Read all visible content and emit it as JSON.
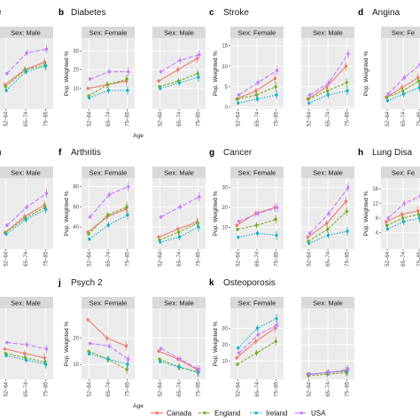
{
  "legend": [
    {
      "name": "Canada",
      "color": "#f07c6e"
    },
    {
      "name": "England",
      "color": "#7aad2b"
    },
    {
      "name": "Ireland",
      "color": "#17b5c4"
    },
    {
      "name": "USA",
      "color": "#c77cff"
    }
  ],
  "chart_data": [
    {
      "id": "a",
      "type": "line",
      "label": "",
      "title": "e",
      "categories": [
        "52–64",
        "65–74",
        "75–85"
      ],
      "ylabel": "",
      "xlabel": "",
      "ylim": [
        0,
        70
      ],
      "yticks": [],
      "facets": [
        {
          "strip": "Sex: Male",
          "series": [
            {
              "name": "Canada",
              "values": [
                24,
                40,
                48
              ]
            },
            {
              "name": "England",
              "values": [
                22,
                40,
                45
              ]
            },
            {
              "name": "Ireland",
              "values": [
                18,
                38,
                44
              ]
            },
            {
              "name": "USA",
              "values": [
                36,
                58,
                62
              ]
            }
          ]
        }
      ]
    },
    {
      "id": "b",
      "type": "line",
      "label": "b",
      "title": "Diabetes",
      "categories": [
        "52–64",
        "65–74",
        "75–85"
      ],
      "ylabel": "Pop. Weighted %",
      "xlabel": "Age",
      "ylim": [
        0,
        35
      ],
      "yticks": [
        10,
        20,
        30
      ],
      "facets": [
        {
          "strip": "Sex: Female",
          "series": [
            {
              "name": "Canada",
              "values": [
                10,
                12,
                14
              ]
            },
            {
              "name": "England",
              "values": [
                6,
                12,
                15
              ]
            },
            {
              "name": "Ireland",
              "values": [
                5,
                9,
                9
              ]
            },
            {
              "name": "USA",
              "values": [
                15,
                19,
                19
              ]
            }
          ]
        },
        {
          "strip": "Sex: Male",
          "series": [
            {
              "name": "Canada",
              "values": [
                14,
                20,
                26
              ]
            },
            {
              "name": "England",
              "values": [
                11,
                14,
                18
              ]
            },
            {
              "name": "Ireland",
              "values": [
                10,
                13,
                16
              ]
            },
            {
              "name": "USA",
              "values": [
                19,
                25,
                28
              ]
            }
          ]
        }
      ]
    },
    {
      "id": "c",
      "type": "line",
      "label": "c",
      "title": "Stroke",
      "categories": [
        "52–64",
        "65–74",
        "75–85"
      ],
      "ylabel": "Pop. Weighted %",
      "xlabel": "",
      "ylim": [
        0,
        16
      ],
      "yticks": [
        0,
        5,
        10,
        15
      ],
      "facets": [
        {
          "strip": "Sex: Female",
          "series": [
            {
              "name": "Canada",
              "values": [
                2,
                4,
                7
              ]
            },
            {
              "name": "England",
              "values": [
                2,
                3,
                5
              ]
            },
            {
              "name": "Ireland",
              "values": [
                1,
                2,
                3
              ]
            },
            {
              "name": "USA",
              "values": [
                3,
                6,
                9
              ]
            }
          ]
        },
        {
          "strip": "Sex: Male",
          "series": [
            {
              "name": "Canada",
              "values": [
                2,
                5,
                10
              ]
            },
            {
              "name": "England",
              "values": [
                2,
                4,
                6
              ]
            },
            {
              "name": "Ireland",
              "values": [
                1,
                3,
                4
              ]
            },
            {
              "name": "USA",
              "values": [
                3,
                6,
                13
              ]
            }
          ]
        }
      ]
    },
    {
      "id": "d",
      "type": "line",
      "label": "d",
      "title": "Angina",
      "categories": [
        "52–64",
        "65–74",
        "75–85"
      ],
      "ylabel": "Pop. Weighted %",
      "xlabel": "",
      "ylim": [
        0,
        20
      ],
      "yticks": [],
      "facets": [
        {
          "strip": "Sex: Fe",
          "series": [
            {
              "name": "Canada",
              "values": [
                3,
                6,
                9
              ]
            },
            {
              "name": "England",
              "values": [
                3,
                5,
                8
              ]
            },
            {
              "name": "Ireland",
              "values": [
                2,
                4,
                6
              ]
            },
            {
              "name": "USA",
              "values": [
                4,
                9,
                13
              ]
            }
          ]
        }
      ]
    },
    {
      "id": "e",
      "type": "line",
      "label": "",
      "title": "n",
      "categories": [
        "52–64",
        "65–74",
        "75–85"
      ],
      "ylabel": "",
      "xlabel": "",
      "ylim": [
        0,
        90
      ],
      "yticks": [],
      "facets": [
        {
          "strip": "Sex: Male",
          "series": [
            {
              "name": "Canada",
              "values": [
                20,
                42,
                58
              ]
            },
            {
              "name": "England",
              "values": [
                20,
                40,
                55
              ]
            },
            {
              "name": "Ireland",
              "values": [
                18,
                38,
                52
              ]
            },
            {
              "name": "USA",
              "values": [
                30,
                55,
                74
              ]
            }
          ]
        }
      ]
    },
    {
      "id": "f",
      "type": "line",
      "label": "f",
      "title": "Arthritis",
      "categories": [
        "52–64",
        "65–74",
        "75–85"
      ],
      "ylabel": "Pop. Weighted %",
      "xlabel": "",
      "ylim": [
        20,
        85
      ],
      "yticks": [
        40,
        60,
        80
      ],
      "facets": [
        {
          "strip": "Sex: Female",
          "series": [
            {
              "name": "Canada",
              "values": [
                35,
                50,
                58
              ]
            },
            {
              "name": "England",
              "values": [
                33,
                52,
                60
              ]
            },
            {
              "name": "Ireland",
              "values": [
                28,
                42,
                52
              ]
            },
            {
              "name": "USA",
              "values": [
                50,
                72,
                80
              ]
            }
          ]
        },
        {
          "strip": "Sex: Male",
          "series": [
            {
              "name": "Canada",
              "values": [
                30,
                38,
                45
              ]
            },
            {
              "name": "England",
              "values": [
                27,
                35,
                44
              ]
            },
            {
              "name": "Ireland",
              "values": [
                25,
                30,
                40
              ]
            },
            {
              "name": "USA",
              "values": [
                50,
                60,
                70
              ]
            }
          ]
        }
      ]
    },
    {
      "id": "g",
      "type": "line",
      "label": "g",
      "title": "Cancer",
      "categories": [
        "52–64",
        "65–74",
        "75–85"
      ],
      "ylabel": "Pop. Weighted %",
      "xlabel": "",
      "ylim": [
        0,
        33
      ],
      "yticks": [
        10,
        20,
        30
      ],
      "facets": [
        {
          "strip": "Sex: Female",
          "series": [
            {
              "name": "Canada",
              "values": [
                11,
                17,
                20
              ]
            },
            {
              "name": "England",
              "values": [
                9,
                11,
                14
              ]
            },
            {
              "name": "Ireland",
              "values": [
                5,
                7,
                6
              ]
            },
            {
              "name": "USA",
              "values": [
                13,
                17,
                20
              ]
            }
          ]
        },
        {
          "strip": "Sex: Male",
          "series": [
            {
              "name": "Canada",
              "values": [
                5,
                12,
                23
              ]
            },
            {
              "name": "England",
              "values": [
                3,
                9,
                18
              ]
            },
            {
              "name": "Ireland",
              "values": [
                2,
                6,
                8
              ]
            },
            {
              "name": "USA",
              "values": [
                7,
                17,
                30
              ]
            }
          ]
        }
      ]
    },
    {
      "id": "h",
      "type": "line",
      "label": "h",
      "title": "Lung Disa",
      "categories": [
        "52–64",
        "65–74",
        "75–85"
      ],
      "ylabel": "Pop. Weighted %",
      "xlabel": "",
      "ylim": [
        0,
        18
      ],
      "yticks": [
        4,
        8,
        12,
        16
      ],
      "facets": [
        {
          "strip": "Sex: Fe",
          "series": [
            {
              "name": "Canada",
              "values": [
                7,
                9,
                10
              ]
            },
            {
              "name": "England",
              "values": [
                6,
                8,
                9
              ]
            },
            {
              "name": "Ireland",
              "values": [
                5,
                7,
                8
              ]
            },
            {
              "name": "USA",
              "values": [
                8,
                12,
                14
              ]
            }
          ]
        }
      ]
    },
    {
      "id": "i",
      "type": "line",
      "label": "",
      "title": "",
      "categories": [
        "52–64",
        "65–74",
        "75–85"
      ],
      "ylabel": "",
      "xlabel": "",
      "ylim": [
        0,
        30
      ],
      "yticks": [],
      "facets": [
        {
          "strip": "Sex: Male",
          "series": [
            {
              "name": "Canada",
              "values": [
                13,
                11,
                9
              ]
            },
            {
              "name": "England",
              "values": [
                11,
                9,
                7
              ]
            },
            {
              "name": "Ireland",
              "values": [
                10,
                8,
                6
              ]
            },
            {
              "name": "USA",
              "values": [
                16,
                15,
                13
              ]
            }
          ]
        }
      ]
    },
    {
      "id": "j",
      "type": "line",
      "label": "j",
      "title": "Psych 2",
      "categories": [
        "52–64",
        "65–74",
        "75–85"
      ],
      "ylabel": "Pop. Weighted %",
      "xlabel": "Age",
      "ylim": [
        5,
        30
      ],
      "yticks": [
        10,
        20
      ],
      "facets": [
        {
          "strip": "Sex: Female",
          "series": [
            {
              "name": "Canada",
              "values": [
                27,
                20,
                17
              ]
            },
            {
              "name": "England",
              "values": [
                15,
                12,
                8
              ]
            },
            {
              "name": "Ireland",
              "values": [
                14,
                12,
                10
              ]
            },
            {
              "name": "USA",
              "values": [
                18,
                17,
                12
              ]
            }
          ]
        },
        {
          "strip": "Sex: Male",
          "series": [
            {
              "name": "Canada",
              "values": [
                15,
                12,
                8
              ]
            },
            {
              "name": "England",
              "values": [
                12,
                9,
                7
              ]
            },
            {
              "name": "Ireland",
              "values": [
                11,
                9,
                7
              ]
            },
            {
              "name": "USA",
              "values": [
                16,
                12,
                8
              ]
            }
          ]
        }
      ]
    },
    {
      "id": "k",
      "type": "line",
      "label": "k",
      "title": "Osteoporosis",
      "categories": [
        "52–64",
        "65–74",
        "75–85"
      ],
      "ylabel": "Pop. Weighted %",
      "xlabel": "",
      "ylim": [
        0,
        40
      ],
      "yticks": [
        10,
        20,
        30
      ],
      "facets": [
        {
          "strip": "Sex: Female",
          "series": [
            {
              "name": "Canada",
              "values": [
                12,
                22,
                30
              ]
            },
            {
              "name": "England",
              "values": [
                8,
                15,
                22
              ]
            },
            {
              "name": "Ireland",
              "values": [
                18,
                30,
                36
              ]
            },
            {
              "name": "USA",
              "values": [
                15,
                26,
                32
              ]
            }
          ]
        },
        {
          "strip": "Sex: Male",
          "series": [
            {
              "name": "Canada",
              "values": [
                2,
                3,
                4
              ]
            },
            {
              "name": "England",
              "values": [
                1,
                2,
                3
              ]
            },
            {
              "name": "Ireland",
              "values": [
                2,
                3,
                4
              ]
            },
            {
              "name": "USA",
              "values": [
                2,
                3,
                5
              ]
            }
          ]
        }
      ]
    }
  ]
}
